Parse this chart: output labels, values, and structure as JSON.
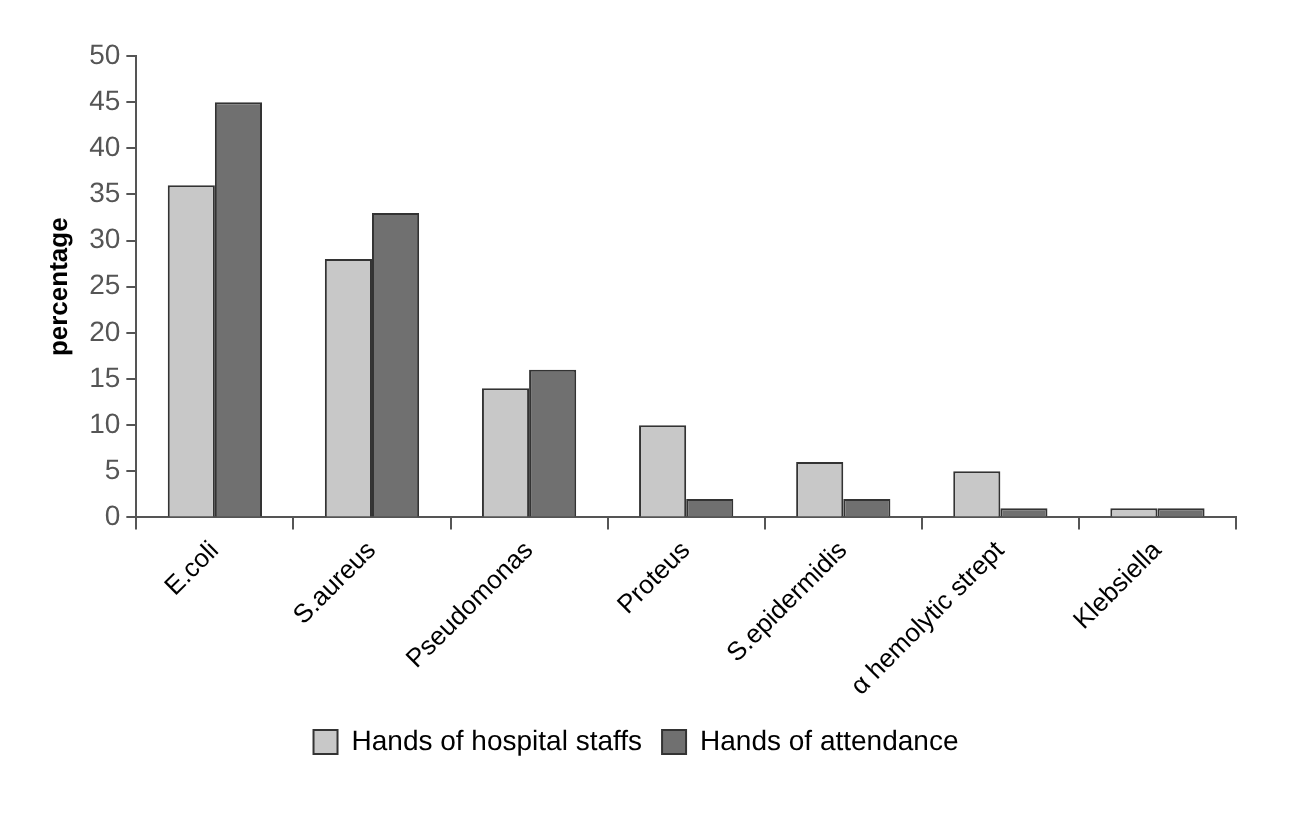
{
  "chart_data": {
    "type": "bar",
    "ylabel": "percentage",
    "categories": [
      "E.coli",
      "S.aureus",
      "Pseudomonas",
      "Proteus",
      "S.epidermidis",
      "α hemolytic strept",
      "Klebsiella"
    ],
    "series": [
      {
        "name": "Hands of hospital staffs",
        "color": "#c8c8c8",
        "values": [
          36,
          28,
          14,
          10,
          6,
          5,
          1
        ]
      },
      {
        "name": "Hands of attendance",
        "color": "#707070",
        "values": [
          45,
          33,
          16,
          2,
          2,
          1,
          1
        ]
      }
    ],
    "ylim": [
      0,
      50
    ],
    "yticks": [
      0,
      5,
      10,
      15,
      20,
      25,
      30,
      35,
      40,
      45,
      50
    ],
    "grid": false,
    "legend": "bottom"
  }
}
